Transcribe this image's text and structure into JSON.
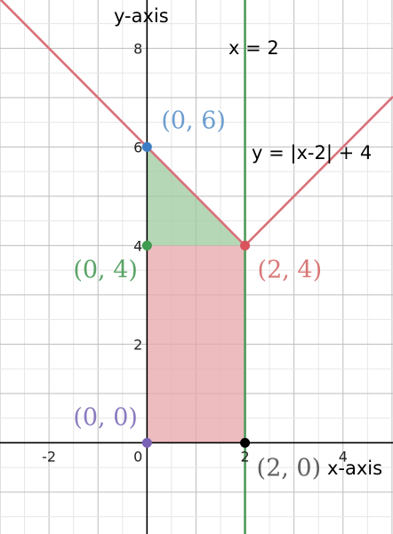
{
  "chart_data": {
    "type": "line",
    "title": "",
    "xlabel": "x-axis",
    "ylabel": "y-axis",
    "xlim": [
      -3,
      5.02
    ],
    "ylim": [
      -1.85,
      8.98
    ],
    "grid": true,
    "x_ticks": [
      {
        "value": -2,
        "label": "-2"
      },
      {
        "value": 0,
        "label": "0"
      },
      {
        "value": 2,
        "label": "2"
      },
      {
        "value": 4,
        "label": "4"
      }
    ],
    "y_ticks": [
      {
        "value": 2,
        "label": "2"
      },
      {
        "value": 4,
        "label": "4"
      },
      {
        "value": 6,
        "label": "6"
      },
      {
        "value": 8,
        "label": "8"
      }
    ],
    "series": [
      {
        "name": "y = |x-2| + 4",
        "type": "line",
        "color": "#d9707a",
        "x": [
          -3,
          2,
          5.02
        ],
        "y": [
          9,
          4,
          7.02
        ]
      },
      {
        "name": "x = 2",
        "type": "vline",
        "color": "#4f9b5b",
        "x": [
          2,
          2
        ],
        "y": [
          -1.85,
          8.98
        ]
      }
    ],
    "shaded_regions": [
      {
        "id": "triangle-region",
        "color": "#9cca9c",
        "vertices": [
          [
            0,
            4
          ],
          [
            0,
            6
          ],
          [
            2,
            4
          ]
        ]
      },
      {
        "id": "rectangle-region",
        "color": "#e6a6a8",
        "vertices": [
          [
            0,
            0
          ],
          [
            2,
            0
          ],
          [
            2,
            4
          ],
          [
            0,
            4
          ]
        ]
      }
    ],
    "points": [
      {
        "id": "pt-0-6",
        "x": 0,
        "y": 6,
        "label": "(0, 6)",
        "color": "#3b7dc4",
        "label_color": "#6d9ed1"
      },
      {
        "id": "pt-0-4",
        "x": 0,
        "y": 4,
        "label": "(0, 4)",
        "color": "#3e9b4f",
        "label_color": "#5aa466"
      },
      {
        "id": "pt-2-4",
        "x": 2,
        "y": 4,
        "label": "(2, 4)",
        "color": "#d9535c",
        "label_color": "#d97777"
      },
      {
        "id": "pt-0-0",
        "x": 0,
        "y": 0,
        "label": "(0, 0)",
        "color": "#7a62b6",
        "label_color": "#8b7cc0"
      },
      {
        "id": "pt-2-0",
        "x": 2,
        "y": 0,
        "label": "(2, 0)",
        "color": "#000000",
        "label_color": "#606060"
      }
    ],
    "annotations": [
      {
        "id": "eq-vline",
        "text": "x = 2"
      },
      {
        "id": "eq-abs",
        "text": "y = |x-2| + 4"
      }
    ]
  }
}
